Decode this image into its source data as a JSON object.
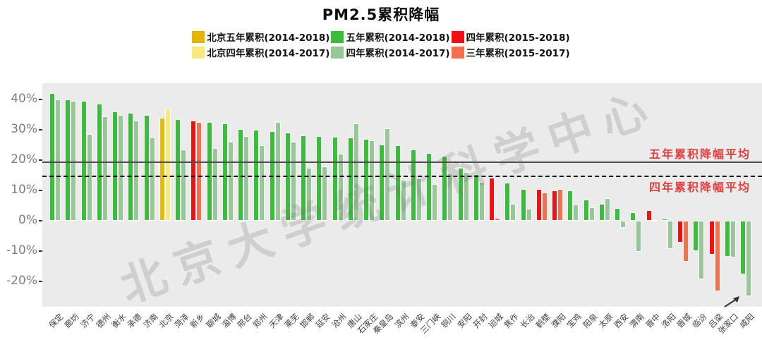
{
  "title": "PM2.5累积降幅",
  "watermark": "北京大学统计科学中心",
  "legend": {
    "items": [
      {
        "label": "北京五年累积(2014-2018)",
        "color": "#e2b506"
      },
      {
        "label": "五年累积(2014-2018)",
        "color": "#3abd3a"
      },
      {
        "label": "四年累积(2015-2018)",
        "color": "#f01212"
      },
      {
        "label": "北京四年累积(2014-2017)",
        "color": "#f9e97c"
      },
      {
        "label": "四年累积(2014-2017)",
        "color": "#97c797"
      },
      {
        "label": "三年累积(2015-2017)",
        "color": "#f56f4d"
      }
    ]
  },
  "annotations": {
    "five_year_avg": "五年累积降幅平均",
    "four_year_avg": "四年累积降幅平均"
  },
  "chart_data": {
    "type": "bar",
    "title": "PM2.5累积降幅",
    "ylabel": "",
    "xlabel": "",
    "grid": false,
    "legend_position": "top",
    "ylim": [
      -27,
      44
    ],
    "yticks": [
      "40%",
      "30%",
      "20%",
      "10%",
      "0%",
      "-10%",
      "-20%"
    ],
    "ytick_values": [
      40,
      30,
      20,
      10,
      0,
      -10,
      -20
    ],
    "avg_lines": {
      "five_year_pct": 19.5,
      "four_year_pct": 15
    },
    "colors": {
      "green": [
        "#3abd3a",
        "#97c797"
      ],
      "beijing": [
        "#e6bb00",
        "#f9e97c"
      ],
      "red": [
        "#f01212",
        "#f56f4d"
      ]
    },
    "series_meaning": {
      "green": [
        "五年累积(2014-2018)",
        "四年累积(2014-2017)"
      ],
      "beijing": [
        "北京五年累积(2014-2018)",
        "北京四年累积(2014-2017)"
      ],
      "red": [
        "四年累积(2015-2018)",
        "三年累积(2015-2017)"
      ]
    },
    "unit": "percent",
    "cities": [
      {
        "name": "保定",
        "group": "green",
        "v1": 42,
        "v2": 40
      },
      {
        "name": "廊坊",
        "group": "green",
        "v1": 40,
        "v2": 39.5
      },
      {
        "name": "济宁",
        "group": "green",
        "v1": 39.5,
        "v2": 28.5
      },
      {
        "name": "德州",
        "group": "green",
        "v1": 38.5,
        "v2": 34.5
      },
      {
        "name": "衡水",
        "group": "green",
        "v1": 36,
        "v2": 35
      },
      {
        "name": "承德",
        "group": "green",
        "v1": 35.5,
        "v2": 33
      },
      {
        "name": "济南",
        "group": "green",
        "v1": 35,
        "v2": 27.5
      },
      {
        "name": "北京",
        "group": "beijing",
        "v1": 34,
        "v2": 37
      },
      {
        "name": "菏泽",
        "group": "green",
        "v1": 33.5,
        "v2": 23.5
      },
      {
        "name": "新乡",
        "group": "red",
        "v1": 33,
        "v2": 32.5
      },
      {
        "name": "聊城",
        "group": "green",
        "v1": 32.5,
        "v2": 24
      },
      {
        "name": "淄博",
        "group": "green",
        "v1": 32,
        "v2": 26
      },
      {
        "name": "邢台",
        "group": "green",
        "v1": 30.2,
        "v2": 28
      },
      {
        "name": "郑州",
        "group": "green",
        "v1": 30,
        "v2": 25
      },
      {
        "name": "天津",
        "group": "green",
        "v1": 29.5,
        "v2": 32.5
      },
      {
        "name": "莱芜",
        "group": "green",
        "v1": 29,
        "v2": 26
      },
      {
        "name": "邯郸",
        "group": "green",
        "v1": 28.2,
        "v2": 17.5
      },
      {
        "name": "延安",
        "group": "green",
        "v1": 28,
        "v2": 18
      },
      {
        "name": "沧州",
        "group": "green",
        "v1": 27.7,
        "v2": 22
      },
      {
        "name": "唐山",
        "group": "green",
        "v1": 27.5,
        "v2": 32
      },
      {
        "name": "石家庄",
        "group": "green",
        "v1": 27,
        "v2": 26.5
      },
      {
        "name": "秦皇岛",
        "group": "green",
        "v1": 25.2,
        "v2": 30.5
      },
      {
        "name": "滨州",
        "group": "green",
        "v1": 25,
        "v2": 13.5
      },
      {
        "name": "泰安",
        "group": "green",
        "v1": 23.5,
        "v2": 14
      },
      {
        "name": "三门峡",
        "group": "green",
        "v1": 22.4,
        "v2": 12
      },
      {
        "name": "铜川",
        "group": "green",
        "v1": 21.5,
        "v2": 15.5
      },
      {
        "name": "安阳",
        "group": "green",
        "v1": 17.5,
        "v2": 16
      },
      {
        "name": "开封",
        "group": "green",
        "v1": 15.4,
        "v2": 12.8
      },
      {
        "name": "运城",
        "group": "red",
        "v1": 14.3,
        "v2": 1
      },
      {
        "name": "焦作",
        "group": "green",
        "v1": 12.5,
        "v2": 5.6
      },
      {
        "name": "长治",
        "group": "green",
        "v1": 10.5,
        "v2": 4
      },
      {
        "name": "鹤壁",
        "group": "red",
        "v1": 10.4,
        "v2": 9.4
      },
      {
        "name": "濮阳",
        "group": "red",
        "v1": 10,
        "v2": 10.5
      },
      {
        "name": "宝鸡",
        "group": "green",
        "v1": 10,
        "v2": 5.3
      },
      {
        "name": "阳泉",
        "group": "green",
        "v1": 7,
        "v2": 4.5
      },
      {
        "name": "太原",
        "group": "green",
        "v1": 5.5,
        "v2": 7.5
      },
      {
        "name": "西安",
        "group": "green",
        "v1": 4.2,
        "v2": -2.4
      },
      {
        "name": "渭南",
        "group": "green",
        "v1": 2.9,
        "v2": -10.3
      },
      {
        "name": "晋中",
        "group": "red",
        "v1": 3.5,
        "v2": 0.3
      },
      {
        "name": "洛阳",
        "group": "green",
        "v1": 0.8,
        "v2": -9.3
      },
      {
        "name": "晋城",
        "group": "red",
        "v1": -7.1,
        "v2": -13.6
      },
      {
        "name": "临汾",
        "group": "green",
        "v1": -9.9,
        "v2": -19.3
      },
      {
        "name": "吕梁",
        "group": "red",
        "v1": -11.1,
        "v2": -23.2
      },
      {
        "name": "张家口",
        "group": "green",
        "v1": -11.8,
        "v2": -12.2
      },
      {
        "name": "咸阳",
        "group": "green",
        "v1": -17.7,
        "v2": -24.8
      }
    ]
  }
}
